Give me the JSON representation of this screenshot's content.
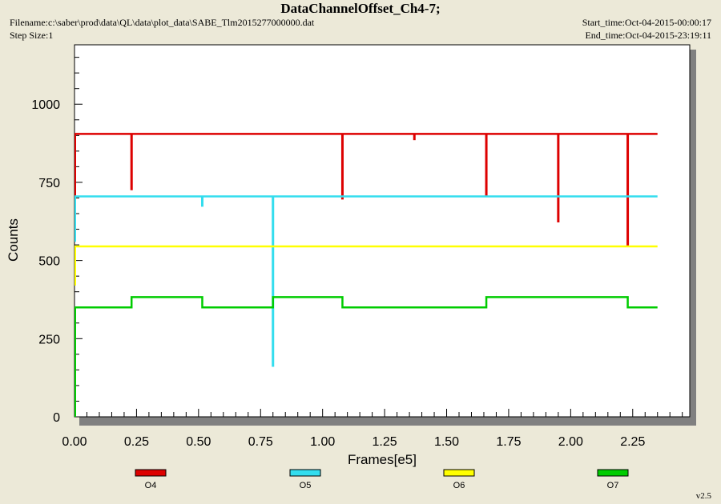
{
  "header": {
    "title": "DataChannelOffset_Ch4-7;",
    "filename": "Filename:c:\\saber\\prod\\data\\QL\\data\\plot_data\\SABE_Tlm2015277000000.dat",
    "step_size": "Step Size:1",
    "start_time": "Start_time:Oct-04-2015-00:00:17",
    "end_time": "End_time:Oct-04-2015-23:19:11"
  },
  "version": "v2.5",
  "chart_data": {
    "type": "line",
    "title": "DataChannelOffset_Ch4-7;",
    "xlabel": "Frames[e5]",
    "ylabel": "Counts",
    "xlim": [
      0,
      2.48
    ],
    "ylim": [
      0,
      1190
    ],
    "x_ticks": [
      0.0,
      0.25,
      0.5,
      0.75,
      1.0,
      1.25,
      1.5,
      1.75,
      2.0,
      2.25
    ],
    "x_tick_labels": [
      "0.00",
      "0.25",
      "0.50",
      "0.75",
      "1.00",
      "1.25",
      "1.50",
      "1.75",
      "2.00",
      "2.25"
    ],
    "y_ticks": [
      0,
      250,
      500,
      750,
      1000
    ],
    "y_tick_labels": [
      "0",
      "250",
      "500",
      "750",
      "1000"
    ],
    "grid": false,
    "legend_position": "bottom",
    "series": [
      {
        "name": "O4",
        "color": "#dd0000",
        "base": 905,
        "x_end": 2.35,
        "start_min": 700,
        "spikes": [
          [
            0.23,
            725
          ],
          [
            1.08,
            695
          ],
          [
            1.37,
            885
          ],
          [
            1.66,
            705
          ],
          [
            1.95,
            622
          ],
          [
            2.23,
            547
          ]
        ]
      },
      {
        "name": "O5",
        "color": "#33ddee",
        "base": 705,
        "x_end": 2.35,
        "start_min": 560,
        "spikes": [
          [
            0.515,
            672
          ],
          [
            0.8,
            160
          ]
        ]
      },
      {
        "name": "O6",
        "color": "#ffff00",
        "base": 545,
        "x_end": 2.35,
        "start_min": 420,
        "spikes": []
      },
      {
        "name": "O7",
        "color": "#00cc00",
        "x_end": 2.35,
        "start_min": 0,
        "steps": [
          [
            0.0,
            350
          ],
          [
            0.23,
            383
          ],
          [
            0.515,
            350
          ],
          [
            0.8,
            383
          ],
          [
            1.08,
            350
          ],
          [
            1.66,
            383
          ],
          [
            2.23,
            350
          ]
        ]
      }
    ]
  }
}
